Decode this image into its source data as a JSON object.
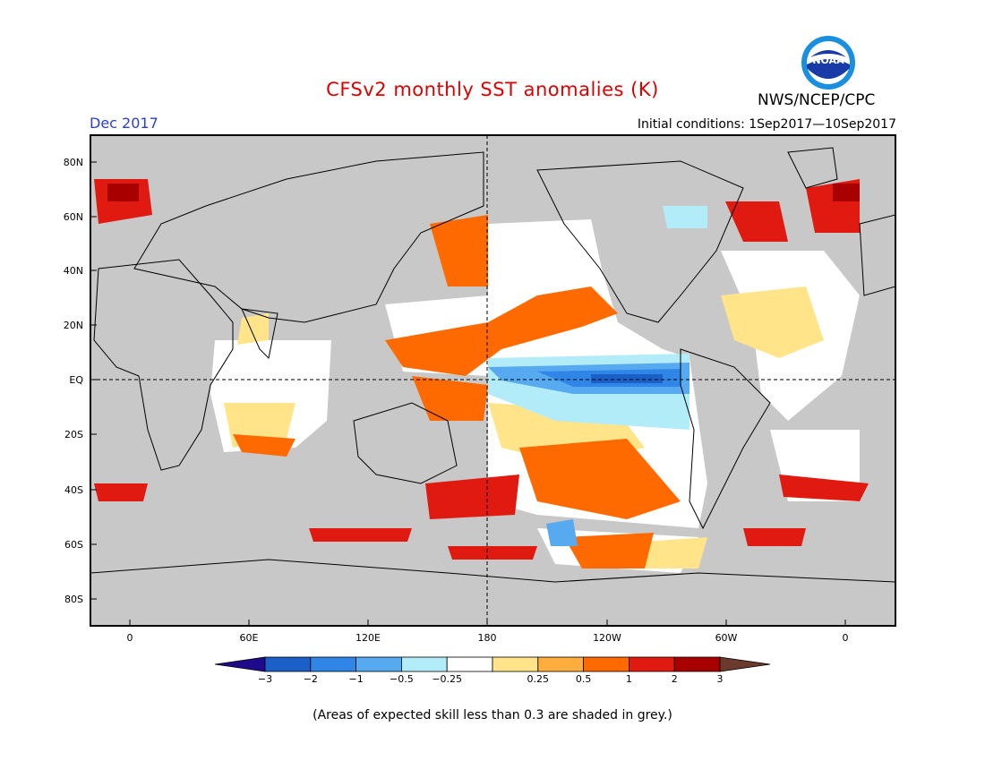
{
  "header": {
    "title": "CFSv2 monthly SST anomalies (K)",
    "month": "Dec 2017",
    "initial_conditions": "Initial conditions: 1Sep2017—10Sep2017",
    "org": "NWS/NCEP/CPC",
    "logo_text": "NOAA"
  },
  "axes": {
    "lat_labels": [
      "80N",
      "60N",
      "40N",
      "20N",
      "EQ",
      "20S",
      "40S",
      "60S",
      "80S"
    ],
    "lon_labels": [
      "0",
      "60E",
      "120E",
      "180",
      "120W",
      "60W",
      "0"
    ]
  },
  "colorbar": {
    "colors": [
      "#1f0a8c",
      "#1b5fc8",
      "#2f86e6",
      "#58aaf0",
      "#b2ecf8",
      "#ffffff",
      "#ffe48a",
      "#ffad3c",
      "#ff6a00",
      "#e01a10",
      "#a80000",
      "#6b3a2e"
    ],
    "labels": [
      "−3",
      "−2",
      "−1",
      "−0.5",
      "−0.25",
      "0.25",
      "0.5",
      "1",
      "2",
      "3"
    ]
  },
  "note": "(Areas of expected skill less than 0.3 are shaded in grey.)"
}
